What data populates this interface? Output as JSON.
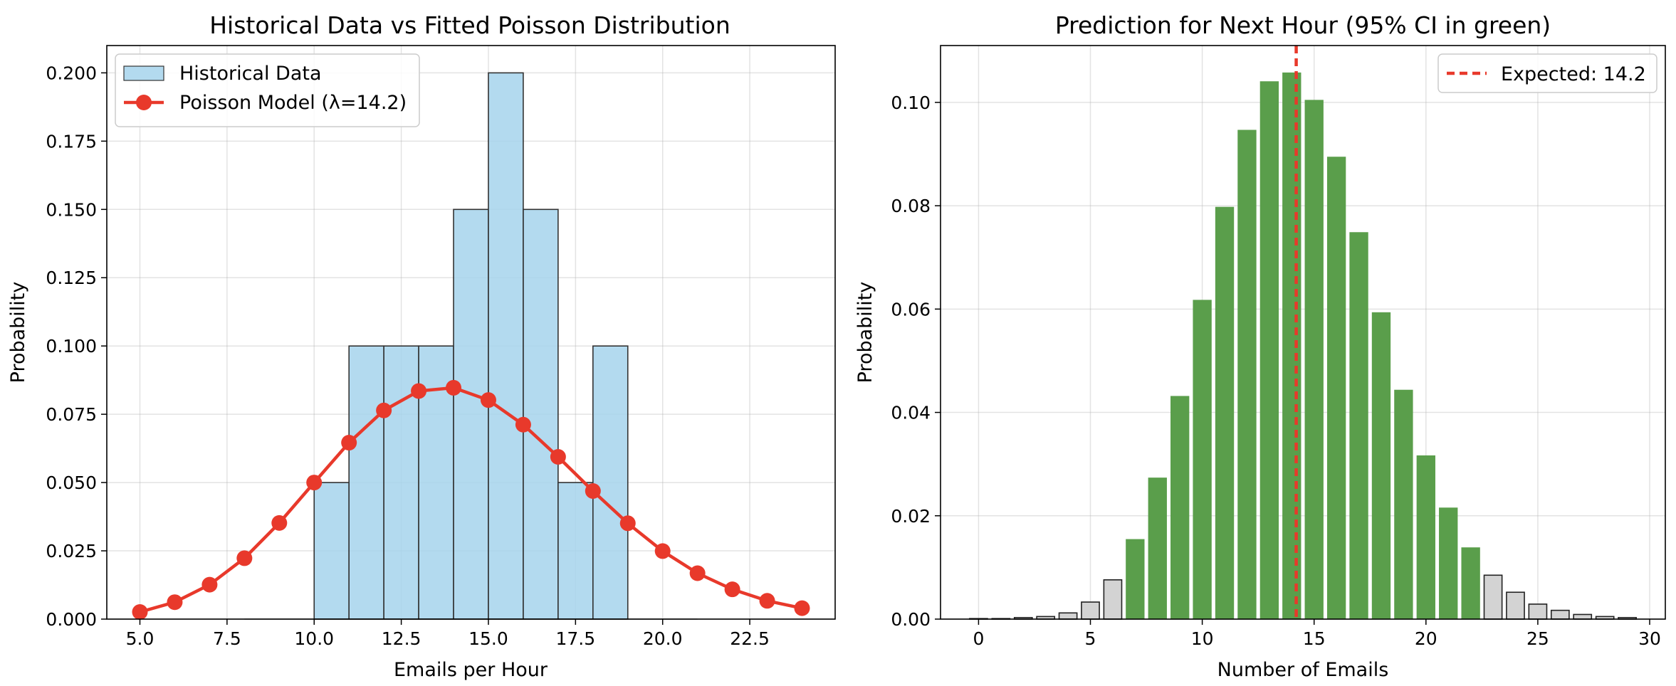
{
  "chart_data": [
    {
      "type": "bar",
      "title": "Historical Data vs Fitted Poisson Distribution",
      "xlabel": "Emails per Hour",
      "ylabel": "Probability",
      "xlim": [
        4.05,
        24.95
      ],
      "ylim": [
        0,
        0.21
      ],
      "xticks": [
        5.0,
        7.5,
        10.0,
        12.5,
        15.0,
        17.5,
        20.0,
        22.5
      ],
      "xtick_labels": [
        "5.0",
        "7.5",
        "10.0",
        "12.5",
        "15.0",
        "17.5",
        "20.0",
        "22.5"
      ],
      "yticks": [
        0.0,
        0.025,
        0.05,
        0.075,
        0.1,
        0.125,
        0.15,
        0.175,
        0.2
      ],
      "ytick_labels": [
        "0.000",
        "0.025",
        "0.050",
        "0.075",
        "0.100",
        "0.125",
        "0.150",
        "0.175",
        "0.200"
      ],
      "grid": true,
      "legend_position": "top-left",
      "histogram": {
        "name": "Historical Data",
        "color": "#a6d4ec",
        "bins": [
          {
            "x0": 10,
            "x1": 11,
            "value": 0.05
          },
          {
            "x0": 11,
            "x1": 12,
            "value": 0.1
          },
          {
            "x0": 12,
            "x1": 13,
            "value": 0.1
          },
          {
            "x0": 13,
            "x1": 14,
            "value": 0.1
          },
          {
            "x0": 14,
            "x1": 15,
            "value": 0.15
          },
          {
            "x0": 15,
            "x1": 16,
            "value": 0.2
          },
          {
            "x0": 16,
            "x1": 17,
            "value": 0.15
          },
          {
            "x0": 17,
            "x1": 18,
            "value": 0.05
          },
          {
            "x0": 18,
            "x1": 19,
            "value": 0.1
          }
        ]
      },
      "series": [
        {
          "name": "Poisson Model (λ=14.2)",
          "color": "#e8392b",
          "x": [
            5,
            6,
            7,
            8,
            9,
            10,
            11,
            12,
            13,
            14,
            15,
            16,
            17,
            18,
            19,
            20,
            21,
            22,
            23,
            24
          ],
          "values": [
            0.0026,
            0.0062,
            0.0126,
            0.0223,
            0.0352,
            0.05,
            0.0646,
            0.0764,
            0.0835,
            0.0847,
            0.0802,
            0.0712,
            0.0594,
            0.0469,
            0.0351,
            0.0249,
            0.0168,
            0.0109,
            0.0067,
            0.004
          ]
        }
      ]
    },
    {
      "type": "bar",
      "title": "Prediction for Next Hour (95% CI in green)",
      "xlabel": "Number of Emails",
      "ylabel": "Probability",
      "xlim": [
        -1.7,
        30.7
      ],
      "ylim": [
        0,
        0.111
      ],
      "xticks": [
        0,
        5,
        10,
        15,
        20,
        25,
        30
      ],
      "xtick_labels": [
        "0",
        "5",
        "10",
        "15",
        "20",
        "25",
        "30"
      ],
      "yticks": [
        0.0,
        0.02,
        0.04,
        0.06,
        0.08,
        0.1
      ],
      "ytick_labels": [
        "0.00",
        "0.02",
        "0.04",
        "0.06",
        "0.08",
        "0.10"
      ],
      "grid": true,
      "legend_position": "top-right",
      "ci_color": "#5a9e4b",
      "outside_color": "#d3d3d3",
      "ci_range": [
        7,
        22
      ],
      "x": [
        0,
        1,
        2,
        3,
        4,
        5,
        6,
        7,
        8,
        9,
        10,
        11,
        12,
        13,
        14,
        15,
        16,
        17,
        18,
        19,
        20,
        21,
        22,
        23,
        24,
        25,
        26,
        27,
        28,
        29
      ],
      "values": [
        0.0001,
        0.0001,
        0.0003,
        0.0005,
        0.0012,
        0.0033,
        0.0076,
        0.0154,
        0.0273,
        0.0431,
        0.0617,
        0.0797,
        0.0946,
        0.104,
        0.1057,
        0.1004,
        0.0894,
        0.0748,
        0.0593,
        0.0443,
        0.0316,
        0.0215,
        0.0138,
        0.0085,
        0.0052,
        0.0029,
        0.0017,
        0.0009,
        0.0005,
        0.0003
      ],
      "expected": {
        "name": "Expected: 14.2",
        "value": 14.2,
        "color": "#e8392b"
      }
    }
  ]
}
